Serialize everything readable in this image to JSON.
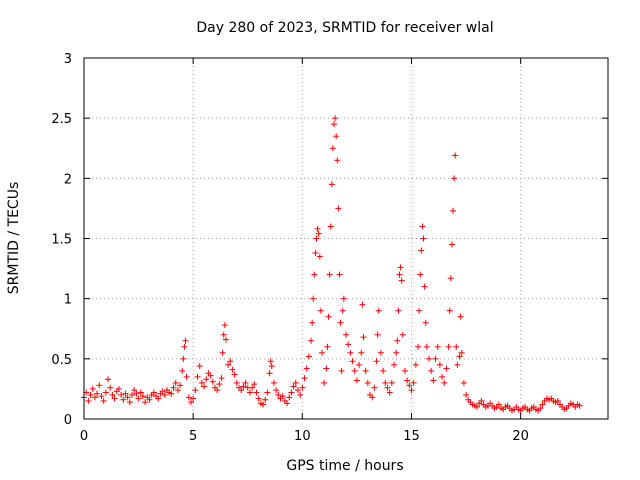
{
  "chart_data": {
    "type": "scatter",
    "title": "Day 280 of 2023, SRMTID for receiver wlal",
    "xlabel": "GPS time / hours",
    "ylabel": "SRMTID / TECUs",
    "xlim": [
      0,
      24
    ],
    "ylim": [
      0,
      3
    ],
    "xticks": [
      0,
      5,
      10,
      15,
      20
    ],
    "xtick_labels": [
      "0",
      "5",
      "10",
      "15",
      "20"
    ],
    "yticks": [
      0,
      0.5,
      1,
      1.5,
      2,
      2.5,
      3
    ],
    "ytick_labels": [
      "0",
      "0.5",
      "1",
      "1.5",
      "2",
      "2.5",
      "3"
    ],
    "grid": true,
    "marker": "+",
    "color": "#ff0000",
    "series": [
      {
        "name": "SRMTID",
        "points": [
          [
            0.0,
            0.18
          ],
          [
            0.1,
            0.22
          ],
          [
            0.2,
            0.15
          ],
          [
            0.3,
            0.2
          ],
          [
            0.4,
            0.25
          ],
          [
            0.5,
            0.18
          ],
          [
            0.6,
            0.21
          ],
          [
            0.7,
            0.28
          ],
          [
            0.8,
            0.19
          ],
          [
            0.9,
            0.15
          ],
          [
            1.0,
            0.22
          ],
          [
            1.1,
            0.33
          ],
          [
            1.2,
            0.26
          ],
          [
            1.3,
            0.2
          ],
          [
            1.4,
            0.17
          ],
          [
            1.5,
            0.23
          ],
          [
            1.6,
            0.25
          ],
          [
            1.7,
            0.2
          ],
          [
            1.8,
            0.16
          ],
          [
            1.9,
            0.21
          ],
          [
            2.0,
            0.18
          ],
          [
            2.1,
            0.14
          ],
          [
            2.2,
            0.2
          ],
          [
            2.3,
            0.24
          ],
          [
            2.4,
            0.21
          ],
          [
            2.5,
            0.17
          ],
          [
            2.6,
            0.22
          ],
          [
            2.7,
            0.19
          ],
          [
            2.8,
            0.14
          ],
          [
            2.9,
            0.18
          ],
          [
            3.0,
            0.16
          ],
          [
            3.1,
            0.2
          ],
          [
            3.2,
            0.22
          ],
          [
            3.3,
            0.19
          ],
          [
            3.4,
            0.17
          ],
          [
            3.5,
            0.21
          ],
          [
            3.6,
            0.23
          ],
          [
            3.7,
            0.2
          ],
          [
            3.8,
            0.24
          ],
          [
            3.9,
            0.22
          ],
          [
            4.0,
            0.21
          ],
          [
            4.1,
            0.26
          ],
          [
            4.2,
            0.3
          ],
          [
            4.3,
            0.24
          ],
          [
            4.4,
            0.28
          ],
          [
            4.5,
            0.4
          ],
          [
            4.55,
            0.5
          ],
          [
            4.6,
            0.6
          ],
          [
            4.65,
            0.65
          ],
          [
            4.7,
            0.35
          ],
          [
            4.8,
            0.18
          ],
          [
            4.9,
            0.14
          ],
          [
            5.0,
            0.17
          ],
          [
            5.1,
            0.24
          ],
          [
            5.2,
            0.35
          ],
          [
            5.3,
            0.44
          ],
          [
            5.4,
            0.3
          ],
          [
            5.5,
            0.27
          ],
          [
            5.6,
            0.33
          ],
          [
            5.7,
            0.38
          ],
          [
            5.8,
            0.36
          ],
          [
            5.9,
            0.31
          ],
          [
            6.0,
            0.26
          ],
          [
            6.1,
            0.24
          ],
          [
            6.2,
            0.29
          ],
          [
            6.3,
            0.34
          ],
          [
            6.35,
            0.55
          ],
          [
            6.4,
            0.7
          ],
          [
            6.45,
            0.78
          ],
          [
            6.5,
            0.66
          ],
          [
            6.6,
            0.45
          ],
          [
            6.7,
            0.48
          ],
          [
            6.8,
            0.41
          ],
          [
            6.9,
            0.37
          ],
          [
            7.0,
            0.3
          ],
          [
            7.1,
            0.26
          ],
          [
            7.2,
            0.24
          ],
          [
            7.3,
            0.27
          ],
          [
            7.4,
            0.3
          ],
          [
            7.5,
            0.26
          ],
          [
            7.6,
            0.22
          ],
          [
            7.7,
            0.26
          ],
          [
            7.8,
            0.29
          ],
          [
            7.9,
            0.22
          ],
          [
            8.0,
            0.17
          ],
          [
            8.1,
            0.13
          ],
          [
            8.2,
            0.12
          ],
          [
            8.3,
            0.16
          ],
          [
            8.4,
            0.22
          ],
          [
            8.5,
            0.38
          ],
          [
            8.55,
            0.48
          ],
          [
            8.6,
            0.44
          ],
          [
            8.7,
            0.3
          ],
          [
            8.8,
            0.24
          ],
          [
            8.9,
            0.2
          ],
          [
            9.0,
            0.17
          ],
          [
            9.1,
            0.19
          ],
          [
            9.2,
            0.15
          ],
          [
            9.3,
            0.13
          ],
          [
            9.4,
            0.18
          ],
          [
            9.5,
            0.22
          ],
          [
            9.6,
            0.27
          ],
          [
            9.7,
            0.3
          ],
          [
            9.8,
            0.24
          ],
          [
            9.9,
            0.2
          ],
          [
            10.0,
            0.26
          ],
          [
            10.1,
            0.34
          ],
          [
            10.2,
            0.42
          ],
          [
            10.3,
            0.52
          ],
          [
            10.4,
            0.65
          ],
          [
            10.45,
            0.8
          ],
          [
            10.5,
            1.0
          ],
          [
            10.55,
            1.2
          ],
          [
            10.6,
            1.38
          ],
          [
            10.65,
            1.5
          ],
          [
            10.7,
            1.58
          ],
          [
            10.75,
            1.54
          ],
          [
            10.8,
            1.35
          ],
          [
            10.85,
            0.9
          ],
          [
            10.9,
            0.55
          ],
          [
            11.0,
            0.3
          ],
          [
            11.1,
            0.42
          ],
          [
            11.15,
            0.6
          ],
          [
            11.2,
            0.85
          ],
          [
            11.25,
            1.2
          ],
          [
            11.3,
            1.6
          ],
          [
            11.35,
            1.95
          ],
          [
            11.4,
            2.25
          ],
          [
            11.45,
            2.45
          ],
          [
            11.5,
            2.5
          ],
          [
            11.55,
            2.35
          ],
          [
            11.6,
            2.15
          ],
          [
            11.65,
            1.75
          ],
          [
            11.7,
            1.2
          ],
          [
            11.75,
            0.8
          ],
          [
            11.8,
            0.4
          ],
          [
            11.85,
            0.9
          ],
          [
            11.9,
            1.0
          ],
          [
            12.0,
            0.7
          ],
          [
            12.1,
            0.62
          ],
          [
            12.2,
            0.55
          ],
          [
            12.3,
            0.48
          ],
          [
            12.4,
            0.4
          ],
          [
            12.5,
            0.32
          ],
          [
            12.6,
            0.45
          ],
          [
            12.7,
            0.55
          ],
          [
            12.75,
            0.95
          ],
          [
            12.8,
            0.68
          ],
          [
            12.9,
            0.4
          ],
          [
            13.0,
            0.3
          ],
          [
            13.1,
            0.2
          ],
          [
            13.2,
            0.18
          ],
          [
            13.3,
            0.26
          ],
          [
            13.4,
            0.48
          ],
          [
            13.45,
            0.7
          ],
          [
            13.5,
            0.9
          ],
          [
            13.6,
            0.55
          ],
          [
            13.7,
            0.4
          ],
          [
            13.8,
            0.3
          ],
          [
            13.9,
            0.26
          ],
          [
            14.0,
            0.22
          ],
          [
            14.1,
            0.3
          ],
          [
            14.2,
            0.45
          ],
          [
            14.3,
            0.55
          ],
          [
            14.35,
            0.65
          ],
          [
            14.4,
            0.9
          ],
          [
            14.45,
            1.2
          ],
          [
            14.5,
            1.26
          ],
          [
            14.55,
            1.15
          ],
          [
            14.6,
            0.7
          ],
          [
            14.7,
            0.4
          ],
          [
            14.8,
            0.32
          ],
          [
            14.9,
            0.28
          ],
          [
            15.0,
            0.24
          ],
          [
            15.1,
            0.3
          ],
          [
            15.2,
            0.45
          ],
          [
            15.3,
            0.6
          ],
          [
            15.35,
            0.9
          ],
          [
            15.4,
            1.2
          ],
          [
            15.45,
            1.4
          ],
          [
            15.5,
            1.6
          ],
          [
            15.55,
            1.5
          ],
          [
            15.6,
            1.1
          ],
          [
            15.65,
            0.8
          ],
          [
            15.7,
            0.6
          ],
          [
            15.8,
            0.5
          ],
          [
            15.9,
            0.4
          ],
          [
            16.0,
            0.32
          ],
          [
            16.1,
            0.5
          ],
          [
            16.2,
            0.6
          ],
          [
            16.3,
            0.45
          ],
          [
            16.4,
            0.35
          ],
          [
            16.5,
            0.3
          ],
          [
            16.6,
            0.42
          ],
          [
            16.7,
            0.6
          ],
          [
            16.75,
            0.9
          ],
          [
            16.8,
            1.17
          ],
          [
            16.85,
            1.45
          ],
          [
            16.9,
            1.73
          ],
          [
            16.95,
            2.0
          ],
          [
            17.0,
            2.19
          ],
          [
            17.05,
            0.6
          ],
          [
            17.1,
            0.45
          ],
          [
            17.2,
            0.52
          ],
          [
            17.25,
            0.85
          ],
          [
            17.3,
            0.55
          ],
          [
            17.4,
            0.3
          ],
          [
            17.5,
            0.2
          ],
          [
            17.6,
            0.16
          ],
          [
            17.7,
            0.14
          ],
          [
            17.8,
            0.12
          ],
          [
            17.9,
            0.11
          ],
          [
            18.0,
            0.1
          ],
          [
            18.1,
            0.13
          ],
          [
            18.2,
            0.15
          ],
          [
            18.3,
            0.12
          ],
          [
            18.4,
            0.1
          ],
          [
            18.5,
            0.11
          ],
          [
            18.6,
            0.13
          ],
          [
            18.7,
            0.11
          ],
          [
            18.8,
            0.09
          ],
          [
            18.9,
            0.1
          ],
          [
            19.0,
            0.12
          ],
          [
            19.1,
            0.09
          ],
          [
            19.2,
            0.08
          ],
          [
            19.3,
            0.1
          ],
          [
            19.4,
            0.11
          ],
          [
            19.5,
            0.09
          ],
          [
            19.6,
            0.07
          ],
          [
            19.7,
            0.08
          ],
          [
            19.8,
            0.1
          ],
          [
            19.9,
            0.08
          ],
          [
            20.0,
            0.07
          ],
          [
            20.1,
            0.09
          ],
          [
            20.2,
            0.1
          ],
          [
            20.3,
            0.08
          ],
          [
            20.4,
            0.07
          ],
          [
            20.5,
            0.09
          ],
          [
            20.6,
            0.1
          ],
          [
            20.7,
            0.08
          ],
          [
            20.8,
            0.07
          ],
          [
            20.9,
            0.09
          ],
          [
            21.0,
            0.12
          ],
          [
            21.1,
            0.15
          ],
          [
            21.2,
            0.17
          ],
          [
            21.3,
            0.16
          ],
          [
            21.4,
            0.17
          ],
          [
            21.5,
            0.15
          ],
          [
            21.6,
            0.14
          ],
          [
            21.7,
            0.15
          ],
          [
            21.8,
            0.12
          ],
          [
            21.9,
            0.1
          ],
          [
            22.0,
            0.08
          ],
          [
            22.1,
            0.09
          ],
          [
            22.2,
            0.11
          ],
          [
            22.3,
            0.13
          ],
          [
            22.4,
            0.12
          ],
          [
            22.5,
            0.1
          ],
          [
            22.6,
            0.12
          ],
          [
            22.7,
            0.11
          ]
        ]
      }
    ]
  }
}
